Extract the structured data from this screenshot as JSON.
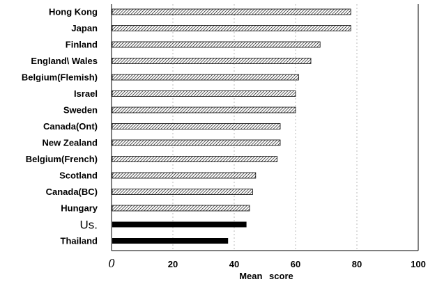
{
  "chart_data": {
    "type": "bar",
    "orientation": "horizontal",
    "categories": [
      "Hong Kong",
      "Japan",
      "Finland",
      "England\\ Wales",
      "Belgium(Flemish)",
      "Israel",
      "Sweden",
      "Canada(Ont)",
      "New Zealand",
      "Belgium(French)",
      "Scotland",
      "Canada(BC)",
      "Hungary",
      "Us.",
      "Thailand"
    ],
    "values": [
      78,
      78,
      68,
      65,
      61,
      60,
      60,
      55,
      55,
      54,
      47,
      46,
      45,
      44,
      38
    ],
    "bar_styles": [
      "hatched",
      "hatched",
      "hatched",
      "hatched",
      "hatched",
      "hatched",
      "hatched",
      "hatched",
      "hatched",
      "hatched",
      "hatched",
      "hatched",
      "hatched",
      "solid",
      "solid"
    ],
    "xlabel": "Mean score",
    "xlim": [
      0,
      100
    ],
    "xticks": [
      0,
      20,
      40,
      60,
      80,
      100
    ],
    "xtick_labels": [
      "0",
      "20",
      "40",
      "60",
      "80",
      "100"
    ],
    "grid": "dashed vertical",
    "colors": {
      "bar": "#000000",
      "grid": "#bbbbbb",
      "axis": "#000000"
    }
  }
}
